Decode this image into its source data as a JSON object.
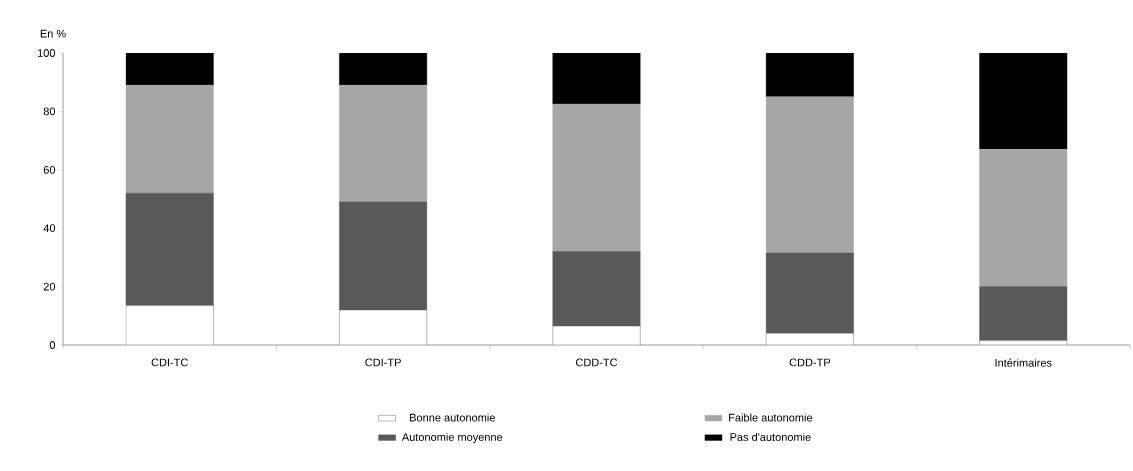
{
  "chart_data": {
    "type": "bar",
    "stacked": true,
    "ylabel": "En %",
    "categories": [
      "CDI-TC",
      "CDI-TP",
      "CDD-TC",
      "CDD-TP",
      "Intérimaires"
    ],
    "series": [
      {
        "name": "Bonne autonomie",
        "color": "#ffffff",
        "values": [
          13.5,
          12,
          6.5,
          4,
          1.5
        ]
      },
      {
        "name": "Autonomie moyenne",
        "color": "#595959",
        "values": [
          38.5,
          37,
          25.5,
          27.5,
          18.5
        ]
      },
      {
        "name": "Faible autonomie",
        "color": "#a6a6a6",
        "values": [
          37,
          40,
          50.5,
          53.5,
          47
        ]
      },
      {
        "name": "Pas d'autonomie",
        "color": "#000000",
        "values": [
          11,
          11,
          17.5,
          15,
          33
        ]
      }
    ],
    "ylim": [
      0,
      100
    ],
    "yticks": [
      0,
      20,
      40,
      60,
      80,
      100
    ],
    "grid": false,
    "legend": "bottom"
  }
}
